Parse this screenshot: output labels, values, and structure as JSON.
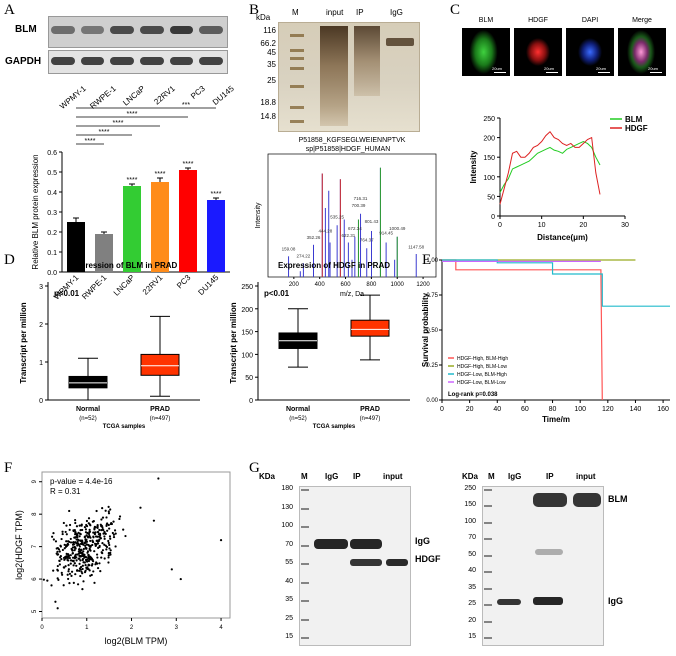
{
  "panel_labels": [
    "A",
    "B",
    "C",
    "D",
    "E",
    "F",
    "G"
  ],
  "panelA": {
    "blot_rows": [
      "BLM",
      "GAPDH"
    ],
    "lanes": [
      "WPMY-1",
      "RWPE-1",
      "LNCaP",
      "22RV1",
      "PC3",
      "DU145"
    ],
    "chart_data": {
      "type": "bar",
      "categories": [
        "WPMY-1",
        "RWPE-1",
        "LNCaP",
        "22RV1",
        "PC3",
        "DU145"
      ],
      "values": [
        0.25,
        0.19,
        0.43,
        0.45,
        0.51,
        0.36
      ],
      "errors": [
        0.02,
        0.01,
        0.01,
        0.02,
        0.01,
        0.01
      ],
      "colors": [
        "#000000",
        "#808080",
        "#33cc33",
        "#ff8c1a",
        "#ff0000",
        "#1a1aff"
      ],
      "significance": [
        "",
        "",
        "****",
        "****",
        "****",
        "****"
      ],
      "brackets": [
        "****",
        "****",
        "****",
        "****",
        "***"
      ],
      "ylabel": "Relative BLM protein expression",
      "ylim": [
        0,
        0.6
      ],
      "yticks": [
        "0.0",
        "0.1",
        "0.2",
        "0.3",
        "0.4",
        "0.5",
        "0.6"
      ]
    }
  },
  "panelB": {
    "gel_headers": [
      "M",
      "input",
      "IP",
      "IgG"
    ],
    "kda_label": "kDa",
    "markers": [
      "116",
      "66.2",
      "45",
      "35",
      "25",
      "18.8",
      "14.8"
    ],
    "ms_title": "P51858_KGFSEGLWEIENNPTVK",
    "ms_subtitle": "sp|P51858|HDGF_HUMAN",
    "ms_xlabel": "m/z, Da",
    "ms_ylabel": "Intensity",
    "ms_xticks": [
      "200",
      "400",
      "600",
      "800",
      "1000",
      "1200"
    ],
    "ms_peak_labels": [
      "159.08",
      "274.22",
      "352.26",
      "444.28",
      "535.25",
      "622.31",
      "672.34",
      "700.39",
      "716.31",
      "764.37",
      "801.43",
      "914.45",
      "1000.49",
      "1147.58"
    ]
  },
  "panelC": {
    "images": [
      "BLM",
      "HDGF",
      "DAPI",
      "Merge"
    ],
    "scale_bar": "20um",
    "chart_data": {
      "type": "line",
      "xlabel": "Distance(μm)",
      "ylabel": "Intensity",
      "xlim": [
        0,
        30
      ],
      "ylim": [
        0,
        250
      ],
      "xticks": [
        "0",
        "10",
        "20",
        "30"
      ],
      "yticks": [
        "0",
        "50",
        "100",
        "150",
        "200",
        "250"
      ],
      "legend_position": "top-right",
      "series": [
        {
          "name": "BLM",
          "color": "#22cc22",
          "x": [
            0,
            1,
            2,
            3,
            4,
            5,
            6,
            7,
            8,
            9,
            10,
            11,
            12,
            13,
            14,
            15,
            16,
            17,
            18,
            19,
            20,
            21,
            22,
            23,
            24
          ],
          "y": [
            60,
            80,
            95,
            120,
            125,
            130,
            135,
            140,
            150,
            160,
            165,
            170,
            175,
            168,
            165,
            160,
            170,
            175,
            180,
            185,
            190,
            185,
            175,
            150,
            130
          ]
        },
        {
          "name": "HDGF",
          "color": "#dd2222",
          "x": [
            0,
            1,
            2,
            3,
            4,
            5,
            6,
            7,
            8,
            9,
            10,
            11,
            12,
            13,
            14,
            15,
            16,
            17,
            18,
            19,
            20,
            21,
            22,
            23,
            24
          ],
          "y": [
            30,
            70,
            110,
            160,
            165,
            150,
            150,
            160,
            175,
            180,
            190,
            205,
            215,
            200,
            195,
            185,
            180,
            185,
            175,
            175,
            185,
            195,
            200,
            110,
            55
          ]
        }
      ]
    }
  },
  "panelD": {
    "left": {
      "title": "Expression of BLM in PRAD",
      "pvalue": "p<0.01",
      "ylabel": "Transcript per million",
      "xlabel": "TCGA samples",
      "chart_data": {
        "type": "box",
        "categories": [
          "Normal",
          "PRAD"
        ],
        "sublabels": [
          "(n=52)",
          "(n=497)"
        ],
        "colors": [
          "#000000",
          "#ff3300"
        ],
        "ylim": [
          0,
          3
        ],
        "yticks": [
          "0",
          "1",
          "2",
          "3"
        ],
        "boxes": [
          {
            "min": 0.0,
            "q1": 0.32,
            "median": 0.45,
            "q3": 0.62,
            "max": 1.1
          },
          {
            "min": 0.1,
            "q1": 0.65,
            "median": 0.9,
            "q3": 1.2,
            "max": 2.2
          }
        ]
      }
    },
    "right": {
      "title": "Expression of HDGF in PRAD",
      "pvalue": "p<0.01",
      "ylabel": "Transcript per million",
      "xlabel": "TCGA samples",
      "chart_data": {
        "type": "box",
        "categories": [
          "Normal",
          "PRAD"
        ],
        "sublabels": [
          "(n=52)",
          "(n=497)"
        ],
        "colors": [
          "#000000",
          "#ff3300"
        ],
        "ylim": [
          0,
          250
        ],
        "yticks": [
          "0",
          "50",
          "100",
          "150",
          "200",
          "250"
        ],
        "boxes": [
          {
            "min": 72,
            "q1": 113,
            "median": 130,
            "q3": 147,
            "max": 200
          },
          {
            "min": 88,
            "q1": 140,
            "median": 155,
            "q3": 175,
            "max": 230
          }
        ]
      }
    }
  },
  "panelE": {
    "chart_data": {
      "type": "line",
      "xlabel": "Time/m",
      "ylabel": "Survival probability",
      "xlim": [
        0,
        165
      ],
      "ylim": [
        0,
        1
      ],
      "xticks": [
        "0",
        "20",
        "40",
        "60",
        "80",
        "100",
        "120",
        "140",
        "160"
      ],
      "yticks": [
        "0.00",
        "0.25",
        "0.50",
        "0.75",
        "1.00"
      ],
      "annotation": "Log-rank p=0.038",
      "legend_position": "bottom-left",
      "series": [
        {
          "name": "HDGF-High, BLM-High",
          "color": "#ff5555",
          "x": [
            0,
            10,
            10,
            115,
            115,
            116
          ],
          "y": [
            1.0,
            1.0,
            0.93,
            0.93,
            0.9,
            0.0
          ]
        },
        {
          "name": "HDGF-High, BLM-Low",
          "color": "#99aa22",
          "x": [
            0,
            140
          ],
          "y": [
            1.0,
            1.0
          ]
        },
        {
          "name": "HDGF-Low, BLM-High",
          "color": "#22bbcc",
          "x": [
            0,
            40,
            40,
            80,
            80,
            116,
            116,
            165
          ],
          "y": [
            1.0,
            1.0,
            0.98,
            0.98,
            0.9,
            0.9,
            0.67,
            0.67
          ]
        },
        {
          "name": "HDGF-Low, BLM-Low",
          "color": "#cc66ff",
          "x": [
            0,
            115
          ],
          "y": [
            0.99,
            0.99
          ]
        }
      ]
    }
  },
  "panelF": {
    "pvalue": "p-value = 4.4e-16",
    "r": "R = 0.31",
    "chart_data": {
      "type": "scatter",
      "xlabel": "log2(BLM TPM)",
      "ylabel": "log2(HDGF TPM)",
      "xlim": [
        0,
        4.2
      ],
      "ylim": [
        4.8,
        9.3
      ],
      "xticks": [
        "0",
        "1",
        "2",
        "3",
        "4"
      ],
      "yticks": [
        "5",
        "6",
        "7",
        "8",
        "9"
      ]
    }
  },
  "panelG": {
    "left": {
      "kda_label": "KDa",
      "headers": [
        "M",
        "IgG",
        "IP",
        "input"
      ],
      "markers": [
        "180",
        "130",
        "100",
        "70",
        "55",
        "40",
        "35",
        "25",
        "15"
      ],
      "band_labels": [
        "IgG",
        "HDGF"
      ]
    },
    "right": {
      "kda_label": "KDa",
      "headers": [
        "M",
        "IgG",
        "IP",
        "input"
      ],
      "markers": [
        "250",
        "150",
        "100",
        "70",
        "50",
        "40",
        "35",
        "25",
        "20",
        "15"
      ],
      "band_labels": [
        "BLM",
        "IgG"
      ]
    }
  }
}
